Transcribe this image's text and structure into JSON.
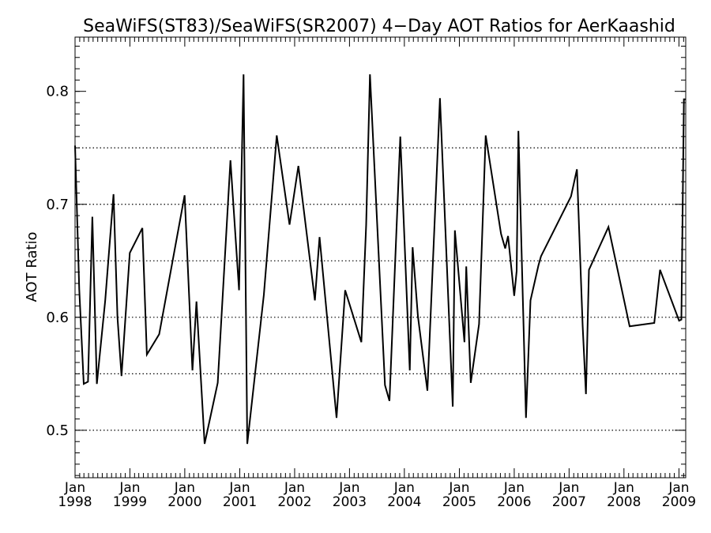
{
  "chart_data": {
    "type": "line",
    "title": "SeaWiFS(ST83)/SeaWiFS(SR2007) 4−Day AOT Ratios for AerKaashid",
    "xlabel": "",
    "ylabel": "AOT Ratio",
    "xlim": [
      "1998-01-01",
      "2009-02-15"
    ],
    "ylim": [
      0.458,
      0.848
    ],
    "yticks": [
      0.5,
      0.6,
      0.7,
      0.8
    ],
    "ytick_labels": [
      "0.5",
      "0.6",
      "0.7",
      "0.8"
    ],
    "y_minor_step": 0.01,
    "grid": {
      "axis": "y",
      "style": "dotted",
      "values": [
        0.5,
        0.55,
        0.6,
        0.65,
        0.7,
        0.75
      ]
    },
    "xticks": [
      {
        "date": "1998-01-01",
        "month": "Jan",
        "year": "1998"
      },
      {
        "date": "1999-01-01",
        "month": "Jan",
        "year": "1999"
      },
      {
        "date": "2000-01-01",
        "month": "Jan",
        "year": "2000"
      },
      {
        "date": "2001-01-01",
        "month": "Jan",
        "year": "2001"
      },
      {
        "date": "2002-01-01",
        "month": "Jan",
        "year": "2002"
      },
      {
        "date": "2003-01-01",
        "month": "Jan",
        "year": "2003"
      },
      {
        "date": "2004-01-01",
        "month": "Jan",
        "year": "2004"
      },
      {
        "date": "2005-01-01",
        "month": "Jan",
        "year": "2005"
      },
      {
        "date": "2006-01-01",
        "month": "Jan",
        "year": "2006"
      },
      {
        "date": "2007-01-01",
        "month": "Jan",
        "year": "2007"
      },
      {
        "date": "2008-01-01",
        "month": "Jan",
        "year": "2008"
      },
      {
        "date": "2009-01-01",
        "month": "Jan",
        "year": "2009"
      }
    ],
    "series": [
      {
        "color": "#000000",
        "x": [
          "1998-01-01",
          "1998-01-29",
          "1998-02-28",
          "1998-03-28",
          "1998-04-26",
          "1998-05-26",
          "1998-07-21",
          "1998-09-14",
          "1998-10-10",
          "1998-11-06",
          "1998-12-31",
          "1999-03-25",
          "1999-04-24",
          "1999-07-15",
          "1999-12-31",
          "2000-02-21",
          "2000-03-19",
          "2000-05-12",
          "2000-08-07",
          "2000-10-31",
          "2000-12-27",
          "2001-01-26",
          "2001-02-20",
          "2001-06-10",
          "2001-09-04",
          "2001-11-28",
          "2002-01-26",
          "2002-05-16",
          "2002-06-16",
          "2002-10-07",
          "2002-12-03",
          "2003-03-21",
          "2003-04-22",
          "2003-05-17",
          "2003-08-25",
          "2003-09-24",
          "2003-12-05",
          "2004-02-06",
          "2004-02-25",
          "2004-03-31",
          "2004-06-02",
          "2004-08-25",
          "2004-11-18",
          "2004-12-02",
          "2005-02-04",
          "2005-02-16",
          "2005-03-18",
          "2005-05-12",
          "2005-06-25",
          "2005-10-05",
          "2005-11-02",
          "2005-11-21",
          "2006-01-01",
          "2006-01-17",
          "2006-01-29",
          "2006-03-20",
          "2006-04-19",
          "2006-06-11",
          "2006-06-28",
          "2007-01-14",
          "2007-02-22",
          "2007-04-01",
          "2007-04-23",
          "2007-05-13",
          "2007-09-20",
          "2008-02-08",
          "2008-07-21",
          "2008-08-28",
          "2009-01-02",
          "2009-01-17",
          "2009-02-03",
          "2009-02-15"
        ],
        "y": [
          0.752,
          0.625,
          0.541,
          0.543,
          0.689,
          0.541,
          0.615,
          0.709,
          0.6,
          0.548,
          0.657,
          0.679,
          0.567,
          0.585,
          0.708,
          0.553,
          0.614,
          0.488,
          0.542,
          0.739,
          0.624,
          0.815,
          0.488,
          0.62,
          0.761,
          0.682,
          0.734,
          0.615,
          0.671,
          0.511,
          0.624,
          0.578,
          0.682,
          0.815,
          0.54,
          0.526,
          0.76,
          0.553,
          0.662,
          0.601,
          0.535,
          0.794,
          0.521,
          0.677,
          0.578,
          0.645,
          0.542,
          0.594,
          0.761,
          0.674,
          0.661,
          0.672,
          0.619,
          0.641,
          0.765,
          0.511,
          0.615,
          0.646,
          0.654,
          0.707,
          0.731,
          0.593,
          0.532,
          0.642,
          0.68,
          0.592,
          0.595,
          0.642,
          0.597,
          0.598,
          0.793,
          0.793
        ]
      }
    ]
  }
}
